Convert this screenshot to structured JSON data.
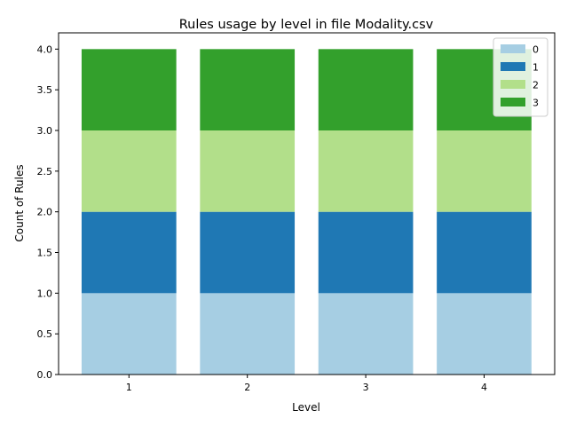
{
  "chart_data": {
    "type": "bar",
    "stacked": true,
    "title": "Rules usage by level in file Modality.csv",
    "xlabel": "Level",
    "ylabel": "Count of Rules",
    "categories": [
      "1",
      "2",
      "3",
      "4"
    ],
    "ylim": [
      0,
      4.2
    ],
    "yticks": [
      "0.0",
      "0.5",
      "1.0",
      "1.5",
      "2.0",
      "2.5",
      "3.0",
      "3.5",
      "4.0"
    ],
    "grid": false,
    "legend_position": "top-right",
    "series": [
      {
        "name": "0",
        "values": [
          1,
          1,
          1,
          1
        ],
        "color": "#a6cee3"
      },
      {
        "name": "1",
        "values": [
          1,
          1,
          1,
          1
        ],
        "color": "#1f78b4"
      },
      {
        "name": "2",
        "values": [
          1,
          1,
          1,
          1
        ],
        "color": "#b2df8a"
      },
      {
        "name": "3",
        "values": [
          1,
          1,
          1,
          1
        ],
        "color": "#33a02c"
      }
    ]
  }
}
